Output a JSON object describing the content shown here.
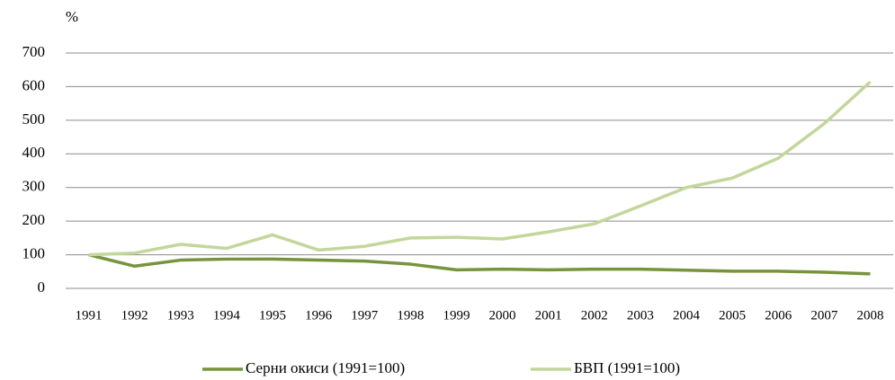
{
  "chart_data": {
    "type": "line",
    "y_label": "%",
    "categories": [
      "1991",
      "1992",
      "1993",
      "1994",
      "1995",
      "1996",
      "1997",
      "1998",
      "1999",
      "2000",
      "2001",
      "2002",
      "2003",
      "2004",
      "2005",
      "2006",
      "2007",
      "2008"
    ],
    "series": [
      {
        "name": "Серни окиси (1991=100)",
        "color": "#77933c",
        "values": [
          100,
          66,
          84,
          87,
          87,
          84,
          81,
          72,
          55,
          57,
          55,
          57,
          57,
          54,
          51,
          51,
          48,
          43
        ]
      },
      {
        "name": "БВП (1991=100)",
        "color": "#c3d69b",
        "values": [
          100,
          105,
          131,
          119,
          159,
          114,
          125,
          150,
          152,
          147,
          168,
          192,
          245,
          300,
          328,
          387,
          490,
          614
        ]
      }
    ],
    "ylim": [
      0,
      700
    ],
    "yticks": [
      0,
      100,
      200,
      300,
      400,
      500,
      600,
      700
    ],
    "grid": true,
    "legend": "bottom"
  }
}
